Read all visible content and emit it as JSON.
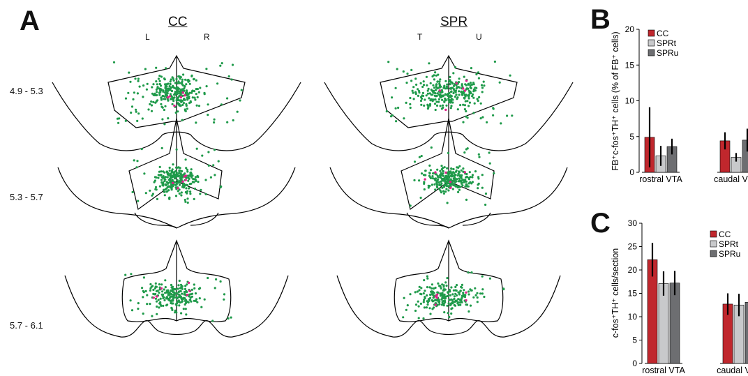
{
  "panel_a": {
    "letter": "A",
    "columns": [
      {
        "title": "CC",
        "left_label": "L",
        "right_label": "R"
      },
      {
        "title": "SPR",
        "left_label": "T",
        "right_label": "U"
      }
    ],
    "rows": [
      {
        "label": "4.9 - 5.3"
      },
      {
        "label": "5.3 - 5.7"
      },
      {
        "label": "5.7 - 6.1"
      }
    ],
    "colors": {
      "fb_fos_th": "#1f9a4a",
      "highlight": "#e0208a",
      "outline": "#000000"
    }
  },
  "chart_data": [
    {
      "panel": "B",
      "type": "bar",
      "ylabel": "FB⁺c-fos⁺TH⁺ cells (% of FB⁺ cells)",
      "ylim": [
        0,
        20
      ],
      "yticks": [
        0,
        5,
        10,
        15,
        20
      ],
      "categories": [
        "rostral VTA",
        "caudal VTA"
      ],
      "legend": "top-left",
      "series": [
        {
          "name": "CC",
          "color": "#c0272d",
          "values": [
            4.9,
            4.4
          ],
          "errors": [
            4.2,
            1.2
          ]
        },
        {
          "name": "SPRt",
          "color": "#c8c9cb",
          "values": [
            2.3,
            2.1
          ],
          "errors": [
            1.4,
            0.6
          ]
        },
        {
          "name": "SPRu",
          "color": "#6d6e71",
          "values": [
            3.6,
            4.5
          ],
          "errors": [
            1.1,
            1.6
          ]
        }
      ]
    },
    {
      "panel": "C",
      "type": "bar",
      "ylabel": "c-fos⁺TH⁺ cells/section",
      "ylim": [
        0,
        30
      ],
      "yticks": [
        0,
        5,
        10,
        15,
        20,
        25,
        30
      ],
      "categories": [
        "rostral VTA",
        "caudal VTA"
      ],
      "legend": "top-right",
      "series": [
        {
          "name": "CC",
          "color": "#c0272d",
          "values": [
            22.2,
            12.7
          ],
          "errors": [
            3.6,
            2.3
          ]
        },
        {
          "name": "SPRt",
          "color": "#c8c9cb",
          "values": [
            17.1,
            12.5
          ],
          "errors": [
            2.6,
            2.4
          ]
        },
        {
          "name": "SPRu",
          "color": "#6d6e71",
          "values": [
            17.2,
            13.1
          ],
          "errors": [
            2.6,
            2.2
          ]
        }
      ]
    }
  ]
}
